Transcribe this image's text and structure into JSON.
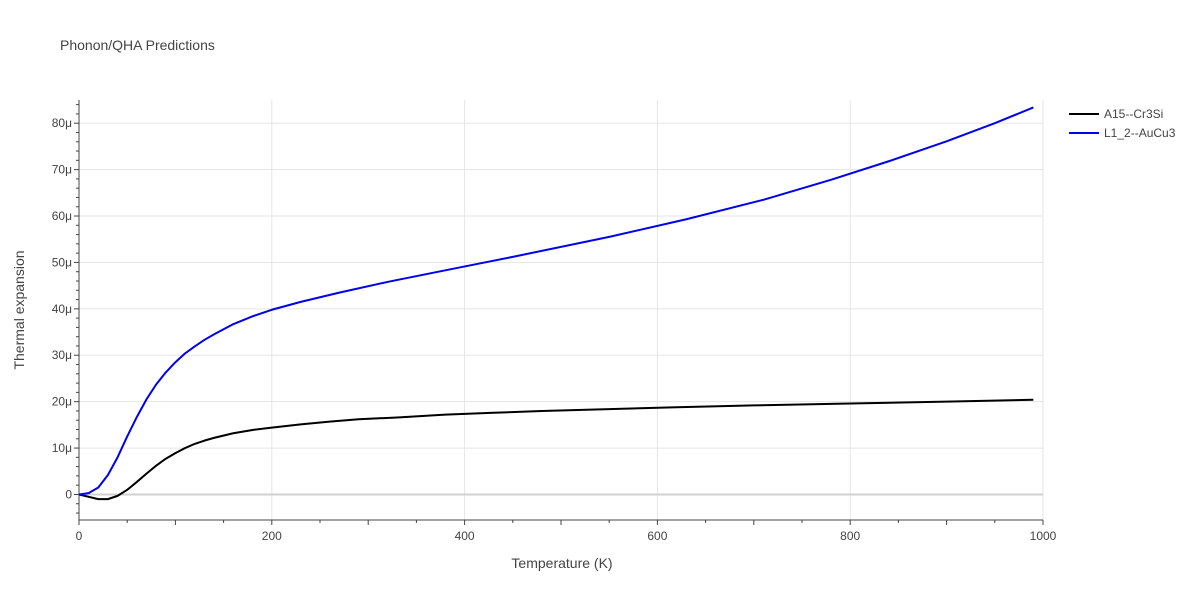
{
  "chart_data": {
    "type": "line",
    "title": "Phonon/QHA Predictions",
    "xlabel": "Temperature (K)",
    "ylabel": "Thermal expansion",
    "xlim": [
      0,
      1000
    ],
    "ylim": [
      -5.5e-06,
      8.5e-05
    ],
    "x_ticks": [
      0,
      200,
      400,
      600,
      800,
      1000
    ],
    "x_tick_labels": [
      "0",
      "200",
      "400",
      "600",
      "800",
      "1000"
    ],
    "y_ticks": [
      0,
      1e-05,
      2e-05,
      3e-05,
      4e-05,
      5e-05,
      6e-05,
      7e-05,
      8e-05
    ],
    "y_tick_labels": [
      "0",
      "10μ",
      "20μ",
      "30μ",
      "40μ",
      "50μ",
      "60μ",
      "70μ",
      "80μ"
    ],
    "grid": true,
    "legend_position": "top-right",
    "series": [
      {
        "name": "A15--Cr3Si",
        "color": "#000000",
        "x": [
          0,
          10,
          20,
          30,
          40,
          50,
          60,
          70,
          80,
          90,
          100,
          110,
          120,
          130,
          140,
          160,
          180,
          200,
          230,
          260,
          290,
          330,
          380,
          430,
          480,
          550,
          620,
          700,
          800,
          900,
          990
        ],
        "y": [
          0,
          -5e-07,
          -1e-06,
          -1e-06,
          -3e-07,
          1e-06,
          2.7e-06,
          4.5e-06,
          6.2e-06,
          7.7e-06,
          8.9e-06,
          1e-05,
          1.09e-05,
          1.16e-05,
          1.22e-05,
          1.32e-05,
          1.39e-05,
          1.44e-05,
          1.51e-05,
          1.57e-05,
          1.62e-05,
          1.66e-05,
          1.72e-05,
          1.76e-05,
          1.8e-05,
          1.84e-05,
          1.88e-05,
          1.92e-05,
          1.96e-05,
          2e-05,
          2.04e-05
        ]
      },
      {
        "name": "L1_2--AuCu3",
        "color": "#0000ee",
        "x": [
          0,
          10,
          20,
          30,
          40,
          50,
          60,
          70,
          80,
          90,
          100,
          110,
          120,
          130,
          140,
          150,
          160,
          180,
          200,
          230,
          270,
          320,
          380,
          450,
          550,
          630,
          710,
          780,
          840,
          900,
          950,
          990
        ],
        "y": [
          0,
          3e-07,
          1.5e-06,
          4.2e-06,
          8e-06,
          1.25e-05,
          1.67e-05,
          2.05e-05,
          2.37e-05,
          2.63e-05,
          2.85e-05,
          3.04e-05,
          3.19e-05,
          3.33e-05,
          3.45e-05,
          3.56e-05,
          3.67e-05,
          3.84e-05,
          3.98e-05,
          4.15e-05,
          4.35e-05,
          4.58e-05,
          4.83e-05,
          5.12e-05,
          5.55e-05,
          5.93e-05,
          6.35e-05,
          6.78e-05,
          7.18e-05,
          7.61e-05,
          8e-05,
          8.34e-05
        ]
      }
    ]
  }
}
